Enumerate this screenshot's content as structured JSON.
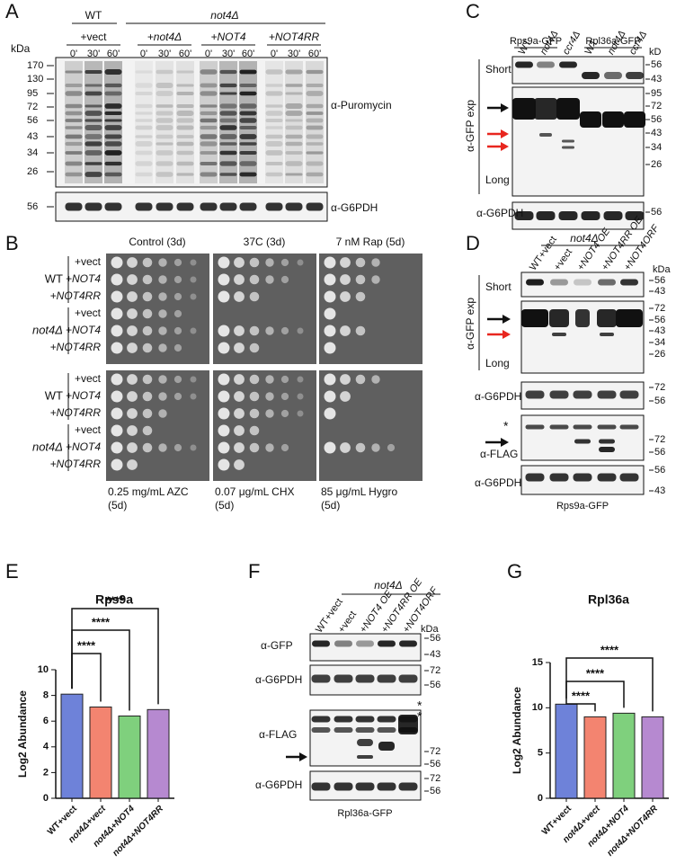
{
  "panel_labels": [
    "A",
    "B",
    "C",
    "D",
    "E",
    "F",
    "G"
  ],
  "A": {
    "header_wt": "WT",
    "header_mut": "not4Δ",
    "groups": [
      "+vect",
      "+not4Δ",
      "+NOT4",
      "+NOT4RR"
    ],
    "times": [
      "0'",
      "30'",
      "60'",
      "0'",
      "30'",
      "60'",
      "0'",
      "30'",
      "60'",
      "0'",
      "30'",
      "60'"
    ],
    "unit": "kDa",
    "markers": [
      170,
      130,
      95,
      72,
      56,
      43,
      34,
      26
    ],
    "loading_markers": [
      56
    ],
    "antibodies": [
      "α-Puromycin",
      "α-G6PDH"
    ]
  },
  "B": {
    "columns": [
      "Control (3d)",
      "37C (3d)",
      "7 nM Rap (5d)"
    ],
    "blocks": [
      {
        "strains": [
          "WT",
          "not4Δ"
        ],
        "plasmids": [
          "+vect",
          "+NOT4",
          "+NOT4RR",
          "+vect",
          "+NOT4",
          "+NOT4RR"
        ]
      },
      {
        "strains": [
          "WT",
          "not4Δ"
        ],
        "plasmids": [
          "+vect",
          "+NOT4",
          "+NOT4RR",
          "+vect",
          "+NOT4",
          "+NOT4RR"
        ]
      }
    ],
    "footers": [
      [
        "0.25 mg/mL AZC",
        "(5d)"
      ],
      [
        "0.07 μg/mL CHX",
        "(5d)"
      ],
      [
        "85 μg/mL Hygro",
        "(5d)"
      ]
    ]
  },
  "C": {
    "proteins": [
      "Rps9a-GFP",
      "Rpl36a-GFP"
    ],
    "lanes": [
      "WT",
      "not4Δ",
      "ccr4Δ",
      "WT",
      "not4Δ",
      "ccr4Δ"
    ],
    "unit": "kD",
    "exposures": [
      "Short",
      "Long"
    ],
    "antibody": "α-GFP exp",
    "loading": "α-G6PDH",
    "markers_short": [
      56,
      43
    ],
    "markers_long": [
      95,
      72,
      56,
      43,
      34,
      26
    ],
    "markers_loading": [
      56
    ]
  },
  "D": {
    "strain": "not4Δ",
    "lanes": [
      "WT+vect",
      "+vect",
      "+NOT4 OE",
      "+NOT4RR OE",
      "+NOT4ORF"
    ],
    "unit": "kDa",
    "exposures": [
      "Short",
      "Long"
    ],
    "antibody": "α-GFP exp",
    "markers_short": [
      56,
      43
    ],
    "markers_long": [
      72,
      56,
      43,
      34,
      26
    ],
    "loading1": "α-G6PDH",
    "markers_loading1": [
      72,
      56
    ],
    "flag_star": "*",
    "flag": "α-FLAG",
    "markers_flag": [
      72,
      56
    ],
    "loading2": "α-G6PDH",
    "markers_loading2": [
      56,
      43
    ],
    "caption": "Rps9a-GFP"
  },
  "E": {
    "type": "bar",
    "title": "Rps9a",
    "y_label": "Log2 Abundance",
    "categories": [
      "WT+vect",
      "not4Δ+vect",
      "not4Δ+NOT4",
      "not4Δ+NOT4RR"
    ],
    "values": [
      8.1,
      7.1,
      6.4,
      6.9
    ],
    "colors": [
      "#4a63cf",
      "#f0654c",
      "#5fc45c",
      "#a46bc4"
    ],
    "ylim": [
      0,
      10
    ],
    "yticks": [
      0,
      2,
      4,
      6,
      8,
      10
    ],
    "significance": [
      "****",
      "****",
      "****"
    ]
  },
  "F": {
    "strain": "not4Δ",
    "lanes": [
      "WT+vect",
      "+vect",
      "+NOT4 OE",
      "+NOT4RR OE",
      "+NOT4ORF"
    ],
    "unit": "kDa",
    "gfp": "α-GFP",
    "markers_gfp": [
      56,
      43
    ],
    "loading1": "α-G6PDH",
    "markers_loading1": [
      72,
      56
    ],
    "flag": "α-FLAG",
    "flag_stars": [
      "*",
      "*"
    ],
    "markers_flag": [
      72,
      56
    ],
    "loading2": "α-G6PDH",
    "markers_loading2": [
      72,
      56
    ],
    "caption": "Rpl36a-GFP"
  },
  "G": {
    "type": "bar",
    "title": "Rpl36a",
    "y_label": "Log2 Abundance",
    "categories": [
      "WT+vect",
      "not4Δ+vect",
      "not4Δ+NOT4",
      "not4Δ+NOT4RR"
    ],
    "values": [
      10.4,
      9.0,
      9.4,
      9.0
    ],
    "colors": [
      "#4a63cf",
      "#f0654c",
      "#5fc45c",
      "#a46bc4"
    ],
    "ylim": [
      0,
      15
    ],
    "yticks": [
      0,
      5,
      10,
      15
    ],
    "significance": [
      "****",
      "****",
      "****"
    ]
  }
}
